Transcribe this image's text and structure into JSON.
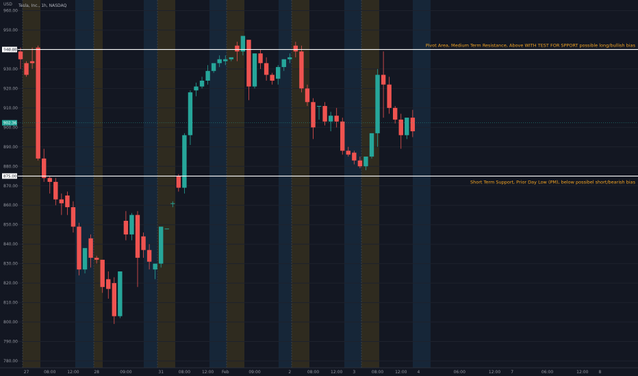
{
  "header": {
    "currency": "USD",
    "symbol_line": "Tesla, Inc., 1h, NASDAQ"
  },
  "colors": {
    "up": "#26a69a",
    "down": "#ef5350",
    "premarket": "#2f2b1f",
    "postmarket": "#162638",
    "level_line": "#ffffff",
    "annotation": "#f5a623"
  },
  "chart_data": {
    "type": "candlestick",
    "ylim": [
      780,
      960
    ],
    "y_ticks": [
      960,
      950,
      940,
      930,
      920,
      910,
      900,
      890,
      880,
      870,
      860,
      850,
      840,
      830,
      820,
      810,
      800,
      790,
      780
    ],
    "x_ticks": [
      {
        "label": "27",
        "i": 1
      },
      {
        "label": "08:00",
        "i": 5
      },
      {
        "label": "12:00",
        "i": 9
      },
      {
        "label": "28",
        "i": 13
      },
      {
        "label": "09:00",
        "i": 18
      },
      {
        "label": "31",
        "i": 24
      },
      {
        "label": "08:00",
        "i": 28
      },
      {
        "label": "12:00",
        "i": 32
      },
      {
        "label": "Feb",
        "i": 35
      },
      {
        "label": "09:00",
        "i": 40
      },
      {
        "label": "2",
        "i": 46
      },
      {
        "label": "08:00",
        "i": 50
      },
      {
        "label": "12:00",
        "i": 54
      },
      {
        "label": "3",
        "i": 57
      },
      {
        "label": "08:00",
        "i": 61
      },
      {
        "label": "12:00",
        "i": 65
      },
      {
        "label": "4",
        "i": 68
      },
      {
        "label": "06:00",
        "i": 75
      },
      {
        "label": "12:00",
        "i": 81
      },
      {
        "label": "7",
        "i": 84
      },
      {
        "label": "06:00",
        "i": 90
      },
      {
        "label": "12:00",
        "i": 96
      },
      {
        "label": "8",
        "i": 99
      }
    ],
    "candles": [
      [
        0,
        939,
        941,
        935,
        930
      ],
      [
        1,
        933,
        934,
        927,
        926
      ],
      [
        2,
        934,
        941,
        933,
        930
      ],
      [
        3,
        941,
        942,
        884,
        883
      ],
      [
        4,
        884,
        889,
        874,
        872
      ],
      [
        5,
        874,
        875,
        872,
        866
      ],
      [
        6,
        872,
        874,
        863,
        860
      ],
      [
        7,
        863,
        866,
        861,
        855
      ],
      [
        8,
        865,
        867,
        859,
        855
      ],
      [
        9,
        859,
        862,
        849,
        846
      ],
      [
        10,
        849,
        851,
        827,
        824
      ],
      [
        11,
        827,
        838,
        838,
        825
      ],
      [
        12,
        843,
        845,
        833,
        828
      ],
      [
        13,
        833,
        834,
        832,
        830
      ],
      [
        14,
        832,
        832,
        818,
        815
      ],
      [
        15,
        822,
        826,
        817,
        812
      ],
      [
        16,
        820,
        823,
        803,
        799
      ],
      [
        17,
        803,
        825,
        826,
        802
      ],
      [
        18,
        852,
        857,
        845,
        842
      ],
      [
        19,
        845,
        856,
        855,
        842
      ],
      [
        20,
        855,
        857,
        833,
        818
      ],
      [
        21,
        844,
        846,
        837,
        833
      ],
      [
        22,
        837,
        840,
        831,
        827
      ],
      [
        23,
        827,
        830,
        830,
        822
      ],
      [
        24,
        830,
        849,
        849,
        828
      ],
      [
        25,
        848,
        848,
        848,
        848
      ],
      [
        26,
        861,
        862,
        861,
        859
      ],
      [
        27,
        875,
        876,
        869,
        867
      ],
      [
        28,
        869,
        897,
        896,
        866
      ],
      [
        29,
        896,
        919,
        918,
        891
      ],
      [
        30,
        919,
        923,
        921,
        916
      ],
      [
        31,
        921,
        926,
        924,
        920
      ],
      [
        32,
        924,
        932,
        929,
        922
      ],
      [
        33,
        929,
        932,
        933,
        928
      ],
      [
        34,
        933,
        937,
        935,
        931
      ],
      [
        35,
        934,
        937,
        935,
        932
      ],
      [
        36,
        935,
        935,
        936,
        934
      ],
      [
        37,
        942,
        944,
        939,
        934
      ],
      [
        38,
        939,
        945,
        947,
        937
      ],
      [
        39,
        945,
        945,
        921,
        914
      ],
      [
        40,
        921,
        938,
        938,
        920
      ],
      [
        41,
        938,
        940,
        933,
        930
      ],
      [
        42,
        933,
        936,
        927,
        924
      ],
      [
        43,
        927,
        928,
        924,
        922
      ],
      [
        44,
        925,
        932,
        931,
        922
      ],
      [
        45,
        931,
        935,
        935,
        929
      ],
      [
        46,
        935,
        938,
        936,
        933
      ],
      [
        47,
        942,
        944,
        939,
        936
      ],
      [
        48,
        939,
        942,
        920,
        918
      ],
      [
        49,
        920,
        922,
        913,
        911
      ],
      [
        50,
        913,
        915,
        900,
        894
      ],
      [
        51,
        911,
        911,
        911,
        904
      ],
      [
        52,
        911,
        913,
        903,
        901
      ],
      [
        53,
        903,
        908,
        906,
        898
      ],
      [
        54,
        906,
        910,
        903,
        900
      ],
      [
        55,
        903,
        905,
        888,
        886
      ],
      [
        56,
        888,
        890,
        886,
        885
      ],
      [
        57,
        887,
        888,
        883,
        881
      ],
      [
        58,
        883,
        885,
        880,
        879
      ],
      [
        59,
        880,
        883,
        885,
        878
      ],
      [
        60,
        885,
        897,
        897,
        884
      ],
      [
        61,
        897,
        930,
        927,
        890
      ],
      [
        62,
        927,
        939,
        922,
        905
      ],
      [
        63,
        922,
        926,
        910,
        907
      ],
      [
        64,
        910,
        911,
        904,
        902
      ],
      [
        65,
        904,
        907,
        896,
        889
      ],
      [
        66,
        896,
        904,
        905,
        894
      ],
      [
        67,
        905,
        909,
        898,
        895
      ]
    ],
    "levels": [
      {
        "value": 940.0,
        "label": "940.00",
        "annotation": "Pivot Area, Medium Term Resistance, Above WITH TEST FOR SPPORT possible long/bullish bias"
      },
      {
        "value": 875.0,
        "label": "875.00",
        "annotation": "Short Term Support, Prior Day Low (PM), below possibel short/bearish bias"
      }
    ],
    "last_price": {
      "value": 902.36,
      "label": "902.36"
    }
  }
}
